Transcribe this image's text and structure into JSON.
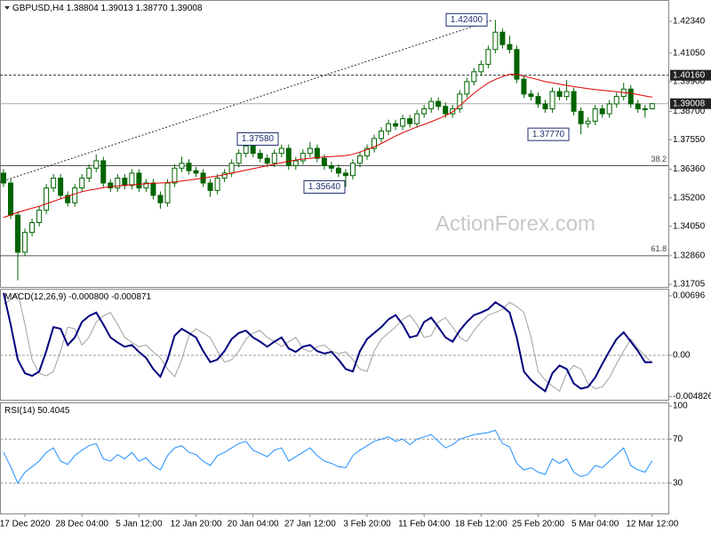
{
  "chart_data": [
    {
      "type": "candlestick",
      "title": "GBPUSD,H4",
      "header_labels": [
        "1.38804",
        "1.39013",
        "1.38770",
        "1.39008"
      ],
      "categories": [
        null,
        null,
        null,
        "17 Dec 2020",
        null,
        null,
        null,
        null,
        null,
        null,
        null,
        "28 Dec 04:00",
        null,
        null,
        null,
        null,
        null,
        null,
        null,
        "5 Jan 12:00",
        null,
        null,
        null,
        null,
        null,
        null,
        null,
        "12 Jan 20:00",
        null,
        null,
        null,
        null,
        null,
        null,
        null,
        "20 Jan 04:00",
        null,
        null,
        null,
        null,
        null,
        null,
        null,
        "27 Jan 12:00",
        null,
        null,
        null,
        null,
        null,
        null,
        null,
        "3 Feb 20:00",
        null,
        null,
        null,
        null,
        null,
        null,
        null,
        "11 Feb 04:00",
        null,
        null,
        null,
        null,
        null,
        null,
        null,
        "18 Feb 12:00",
        null,
        null,
        null,
        null,
        null,
        null,
        null,
        "25 Feb 20:00",
        null,
        null,
        null,
        null,
        null,
        null,
        null,
        "5 Mar 04:00",
        null,
        null,
        null,
        null,
        null,
        null,
        null,
        "12 Mar 12:00"
      ],
      "open": [
        1.362,
        1.358,
        1.345,
        1.33,
        1.338,
        1.342,
        1.347,
        1.356,
        1.36,
        1.353,
        1.35,
        1.356,
        1.36,
        1.364,
        1.367,
        1.358,
        1.356,
        1.36,
        1.357,
        1.362,
        1.356,
        1.358,
        1.353,
        1.35,
        1.358,
        1.364,
        1.366,
        1.363,
        1.362,
        1.358,
        1.355,
        1.36,
        1.362,
        1.366,
        1.37,
        1.373,
        1.37,
        1.368,
        1.366,
        1.37,
        1.372,
        1.365,
        1.367,
        1.37,
        1.372,
        1.368,
        1.365,
        1.364,
        1.362,
        1.361,
        1.366,
        1.369,
        1.372,
        1.376,
        1.379,
        1.382,
        1.381,
        1.384,
        1.382,
        1.386,
        1.388,
        1.391,
        1.389,
        1.386,
        1.388,
        1.394,
        1.399,
        1.403,
        1.406,
        1.412,
        1.419,
        1.414,
        1.412,
        1.4,
        1.394,
        1.393,
        1.39,
        1.388,
        1.395,
        1.393,
        1.395,
        1.387,
        1.382,
        1.383,
        1.388,
        1.386,
        1.39,
        1.393,
        1.396,
        1.39,
        1.388,
        1.38804
      ],
      "high": [
        1.3636,
        1.3596,
        1.3466,
        1.3396,
        1.3436,
        1.3486,
        1.3576,
        1.3616,
        1.3616,
        1.3546,
        1.3576,
        1.3616,
        1.3656,
        1.3696,
        1.3686,
        1.3596,
        1.3616,
        1.3616,
        1.3636,
        1.3636,
        1.3596,
        1.3596,
        1.3546,
        1.3596,
        1.3656,
        1.3686,
        1.3676,
        1.3646,
        1.3636,
        1.3596,
        1.3616,
        1.3636,
        1.3676,
        1.3716,
        1.3758,
        1.3746,
        1.3716,
        1.3696,
        1.3716,
        1.3736,
        1.3736,
        1.3686,
        1.3716,
        1.3746,
        1.3736,
        1.3696,
        1.3666,
        1.3656,
        1.3636,
        1.3676,
        1.3706,
        1.3736,
        1.3776,
        1.3806,
        1.3836,
        1.3836,
        1.3856,
        1.3856,
        1.3876,
        1.3896,
        1.3926,
        1.3926,
        1.3906,
        1.3896,
        1.3956,
        1.4006,
        1.4046,
        1.4076,
        1.4136,
        1.424,
        1.4206,
        1.4176,
        1.4136,
        1.4016,
        1.3956,
        1.3946,
        1.3916,
        1.3966,
        1.3966,
        1.3996,
        1.3966,
        1.3886,
        1.3846,
        1.3896,
        1.3896,
        1.3916,
        1.3946,
        1.3986,
        1.3976,
        1.3916,
        1.3896,
        1.39013
      ],
      "low": [
        1.3564,
        1.3434,
        1.3186,
        1.3284,
        1.3364,
        1.3404,
        1.3454,
        1.3544,
        1.3514,
        1.3484,
        1.3484,
        1.3544,
        1.3584,
        1.3624,
        1.3564,
        1.3544,
        1.3544,
        1.3554,
        1.3554,
        1.3544,
        1.3544,
        1.3514,
        1.3476,
        1.3484,
        1.3564,
        1.3624,
        1.3614,
        1.3604,
        1.3564,
        1.3524,
        1.3534,
        1.3584,
        1.3604,
        1.3644,
        1.3684,
        1.3684,
        1.3664,
        1.3644,
        1.3644,
        1.3684,
        1.3634,
        1.3634,
        1.3654,
        1.3684,
        1.3664,
        1.3634,
        1.3624,
        1.3604,
        1.3564,
        1.3594,
        1.3644,
        1.3674,
        1.3704,
        1.3744,
        1.3774,
        1.3794,
        1.3794,
        1.3804,
        1.3804,
        1.3844,
        1.3864,
        1.3874,
        1.3844,
        1.3844,
        1.3864,
        1.3924,
        1.3974,
        1.4014,
        1.4044,
        1.4104,
        1.4124,
        1.4104,
        1.3984,
        1.3924,
        1.3914,
        1.3884,
        1.3864,
        1.3864,
        1.3914,
        1.3914,
        1.3854,
        1.3777,
        1.3804,
        1.3814,
        1.3844,
        1.3844,
        1.3884,
        1.3914,
        1.3884,
        1.3864,
        1.3844,
        1.3877
      ],
      "close": [
        1.358,
        1.345,
        1.33,
        1.338,
        1.342,
        1.347,
        1.356,
        1.36,
        1.353,
        1.35,
        1.356,
        1.36,
        1.364,
        1.367,
        1.358,
        1.356,
        1.36,
        1.357,
        1.362,
        1.356,
        1.358,
        1.353,
        1.35,
        1.358,
        1.364,
        1.366,
        1.363,
        1.362,
        1.358,
        1.355,
        1.36,
        1.362,
        1.366,
        1.37,
        1.373,
        1.37,
        1.368,
        1.366,
        1.37,
        1.372,
        1.365,
        1.367,
        1.37,
        1.372,
        1.368,
        1.365,
        1.364,
        1.362,
        1.361,
        1.366,
        1.369,
        1.372,
        1.376,
        1.379,
        1.382,
        1.381,
        1.384,
        1.382,
        1.386,
        1.388,
        1.391,
        1.389,
        1.386,
        1.388,
        1.394,
        1.399,
        1.403,
        1.406,
        1.412,
        1.419,
        1.414,
        1.412,
        1.4,
        1.394,
        1.393,
        1.39,
        1.388,
        1.395,
        1.393,
        1.395,
        1.387,
        1.382,
        1.383,
        1.388,
        1.386,
        1.39,
        1.393,
        1.396,
        1.39,
        1.388,
        1.38804,
        1.39008
      ],
      "color": "#006400",
      "ma": [
        1.344,
        1.3451,
        1.3461,
        1.347,
        1.3478,
        1.3486,
        1.3496,
        1.3506,
        1.3516,
        1.3526,
        1.3536,
        1.3545,
        1.3551,
        1.3556,
        1.3561,
        1.3565,
        1.3568,
        1.3571,
        1.3573,
        1.3575,
        1.3577,
        1.3579,
        1.358,
        1.3582,
        1.3584,
        1.3588,
        1.3592,
        1.3596,
        1.36,
        1.3604,
        1.3608,
        1.3614,
        1.362,
        1.3626,
        1.3632,
        1.3638,
        1.3644,
        1.365,
        1.3656,
        1.3662,
        1.3668,
        1.3673,
        1.3677,
        1.368,
        1.3683,
        1.3685,
        1.3687,
        1.3689,
        1.3691,
        1.3696,
        1.3705,
        1.3715,
        1.3726,
        1.374,
        1.3755,
        1.377,
        1.3783,
        1.3795,
        1.3807,
        1.3817,
        1.3828,
        1.384,
        1.3852,
        1.3868,
        1.3893,
        1.3918,
        1.3943,
        1.3965,
        1.3985,
        1.3999,
        1.401,
        1.402,
        1.402,
        1.4012,
        1.4005,
        1.3998,
        1.399,
        1.3985,
        1.398,
        1.3975,
        1.397,
        1.3966,
        1.3962,
        1.3958,
        1.3955,
        1.3952,
        1.3949,
        1.3946,
        1.3943,
        1.3938,
        1.3932,
        1.3927
      ],
      "ma_color": "#e00000",
      "ylim": [
        1.31597,
        1.43202
      ],
      "yticks": [
        {
          "value": 1.4234,
          "label": "1.42340"
        },
        {
          "value": 1.4105,
          "label": "1.41050"
        },
        {
          "value": 1.399,
          "label": "1.39900"
        },
        {
          "value": 1.387,
          "label": "1.38700"
        },
        {
          "value": 1.3755,
          "label": "1.37550"
        },
        {
          "value": 1.3636,
          "label": "1.36360"
        },
        {
          "value": 1.352,
          "label": "1.35200"
        },
        {
          "value": 1.3405,
          "label": "1.34050"
        },
        {
          "value": 1.3286,
          "label": "1.32860"
        },
        {
          "value": 1.31705,
          "label": "1.31705"
        }
      ],
      "levels": [
        {
          "value": 1.4016,
          "label": "1.40160"
        }
      ],
      "last_label": "1.39008",
      "fib_levels": [
        {
          "value": 1.365,
          "label": "38.2"
        },
        {
          "value": 1.3286,
          "label": "61.8"
        }
      ],
      "trendline": {
        "from": 1.3584,
        "to": 1.424
      },
      "annotations": [
        {
          "value": 1.424,
          "label": "1.42400"
        },
        {
          "value": 1.3758,
          "label": "1.37580"
        },
        {
          "value": 1.3564,
          "label": "1.35640"
        },
        {
          "value": 1.3777,
          "label": "1.37770"
        }
      ],
      "watermark": "ActionForex.com"
    },
    {
      "type": "line",
      "title": "MACD(12,26,9)",
      "header_labels": [
        "-0.000800",
        "-0.000871"
      ],
      "series": [
        {
          "color": "#000080",
          "values": [
            0.0073,
            0.0036,
            -0.0005,
            -0.0021,
            -0.0024,
            -0.0019,
            0.0005,
            0.0033,
            0.0031,
            0.0012,
            0.0021,
            0.0039,
            0.0046,
            0.005,
            0.0036,
            0.0021,
            0.0015,
            0.001,
            0.0012,
            0.0004,
            -0.0003,
            -0.0016,
            -0.0025,
            -0.0005,
            0.0023,
            0.0031,
            0.0026,
            0.0021,
            0.0005,
            -0.0008,
            -0.0005,
            0.0005,
            0.0019,
            0.0026,
            0.0029,
            0.0021,
            0.0016,
            0.001,
            0.0016,
            0.0021,
            0.0008,
            0.0004,
            0.001,
            0.0012,
            0.0005,
            0.0002,
            0.0004,
            -0.0005,
            -0.0016,
            -0.0019,
            0.0005,
            0.0019,
            0.0026,
            0.0033,
            0.0042,
            0.0047,
            0.0036,
            0.0021,
            0.0023,
            0.0039,
            0.0044,
            0.0033,
            0.0021,
            0.0016,
            0.0029,
            0.0039,
            0.0047,
            0.005,
            0.0054,
            0.0062,
            0.0057,
            0.005,
            0.0021,
            -0.0019,
            -0.0029,
            -0.0036,
            -0.0042,
            -0.0021,
            -0.0012,
            -0.0016,
            -0.0033,
            -0.0039,
            -0.0037,
            -0.0026,
            -0.001,
            0.0005,
            0.0019,
            0.0027,
            0.0016,
            0.0005,
            -0.0008,
            -0.0008
          ]
        },
        {
          "color": "#a0a0a0",
          "values": [
            0.006,
            0.0065,
            0.0073,
            0.0036,
            -0.0005,
            -0.0021,
            -0.0024,
            -0.0019,
            0.0005,
            0.0033,
            0.0031,
            0.0012,
            0.0021,
            0.0039,
            0.0046,
            0.005,
            0.0036,
            0.0021,
            0.0015,
            0.001,
            0.0012,
            0.0004,
            -0.0003,
            -0.0016,
            -0.0025,
            -0.0005,
            0.0023,
            0.0031,
            0.0026,
            0.0021,
            0.0005,
            -0.0008,
            -0.0005,
            0.0005,
            0.0019,
            0.0026,
            0.0029,
            0.0021,
            0.0016,
            0.001,
            0.0016,
            0.0021,
            0.0008,
            0.0004,
            0.001,
            0.0012,
            0.0005,
            0.0002,
            0.0004,
            -0.0005,
            -0.0016,
            -0.0019,
            0.0005,
            0.0019,
            0.0026,
            0.0033,
            0.0042,
            0.0047,
            0.0036,
            0.0021,
            0.0023,
            0.0039,
            0.0044,
            0.0033,
            0.0021,
            0.0016,
            0.0029,
            0.0039,
            0.0047,
            0.005,
            0.0054,
            0.0062,
            0.0057,
            0.005,
            0.0021,
            -0.0019,
            -0.0029,
            -0.0036,
            -0.0042,
            -0.0021,
            -0.0012,
            -0.0016,
            -0.0033,
            -0.0039,
            -0.0037,
            -0.0026,
            -0.001,
            0.0005,
            0.0019,
            0.0008,
            -0.0001,
            -0.000871
          ]
        }
      ],
      "ylim": [
        -0.0052,
        0.00779
      ],
      "yticks": [
        0.00696,
        {
          "value": 0,
          "label": "0.00"
        },
        -0.004826
      ],
      "zero_line": 0
    },
    {
      "type": "line",
      "title": "RSI(14)",
      "series": [
        {
          "color": "#1e90ff",
          "values": [
            58,
            45,
            30,
            40,
            45,
            50,
            58,
            62,
            50,
            47,
            55,
            60,
            64,
            66,
            52,
            50,
            56,
            52,
            58,
            50,
            53,
            46,
            42,
            55,
            62,
            64,
            58,
            56,
            50,
            46,
            55,
            58,
            62,
            66,
            68,
            60,
            57,
            54,
            60,
            62,
            50,
            54,
            58,
            62,
            55,
            50,
            48,
            45,
            44,
            55,
            60,
            64,
            68,
            70,
            72,
            68,
            70,
            65,
            70,
            72,
            74,
            68,
            62,
            65,
            70,
            72,
            74,
            75,
            76,
            78,
            66,
            63,
            48,
            42,
            44,
            40,
            38,
            52,
            48,
            52,
            40,
            36,
            38,
            46,
            44,
            50,
            56,
            62,
            46,
            42,
            40,
            50.4045
          ]
        }
      ],
      "ylim": [
        2.5,
        103.3
      ],
      "yticks": [
        100,
        70,
        30
      ],
      "levels": [
        70,
        30
      ]
    }
  ]
}
